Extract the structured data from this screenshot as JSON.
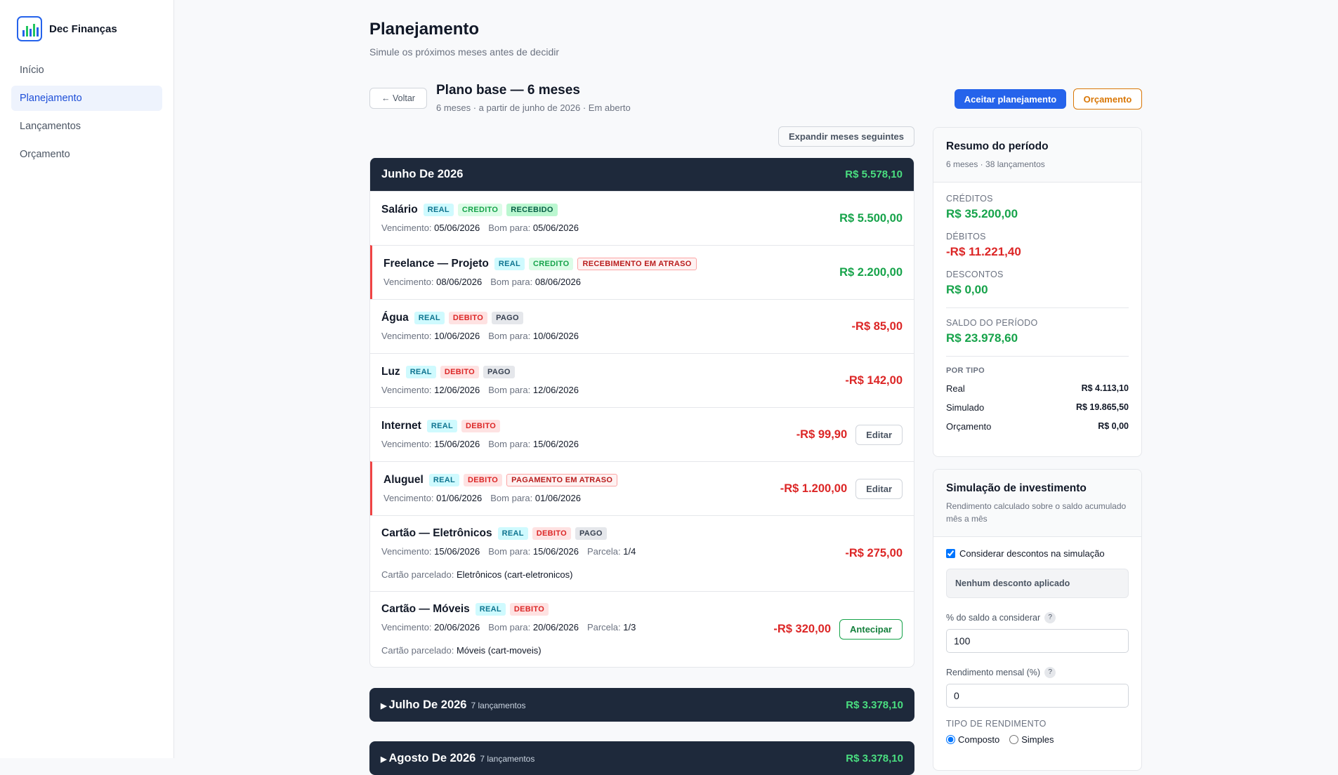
{
  "sidebar": {
    "brand": "Dec Finanças",
    "nav": [
      "Início",
      "Planejamento",
      "Lançamentos",
      "Orçamento"
    ],
    "active": 1
  },
  "header": {
    "title": "Planejamento",
    "subtitle": "Simule os próximos meses antes de decidir"
  },
  "plan": {
    "back": "← Voltar",
    "title": "Plano base — 6 meses",
    "meta": "6 meses · a partir de junho de 2026 · Em aberto",
    "accept": "Aceitar planejamento",
    "budget": "Orçamento",
    "expand": "Expandir meses seguintes"
  },
  "labels": {
    "due": "Vencimento:",
    "good": "Bom para:",
    "parcel": "Parcela:",
    "card": "Cartão parcelado:"
  },
  "months": [
    {
      "title": "Junho De 2026",
      "total": "R$ 5.578,10",
      "entries": [
        {
          "name": "Salário",
          "tags": [
            {
              "text": "REAL",
              "tone": "real"
            },
            {
              "text": "CREDITO",
              "tone": "credit"
            },
            {
              "text": "RECEBIDO",
              "tone": "received"
            }
          ],
          "due": "05/06/2026",
          "good": "05/06/2026",
          "amount": "R$ 5.500,00",
          "color": "#16a34a"
        },
        {
          "name": "Freelance — Projeto",
          "late": true,
          "tags": [
            {
              "text": "REAL",
              "tone": "real"
            },
            {
              "text": "CREDITO",
              "tone": "credit"
            },
            {
              "text": "RECEBIMENTO EM ATRASO",
              "tone": "late"
            }
          ],
          "due": "08/06/2026",
          "good": "08/06/2026",
          "amount": "R$ 2.200,00",
          "color": "#16a34a"
        },
        {
          "name": "Água",
          "tags": [
            {
              "text": "REAL",
              "tone": "real"
            },
            {
              "text": "DEBITO",
              "tone": "debit"
            },
            {
              "text": "PAGO",
              "tone": "paid"
            }
          ],
          "due": "10/06/2026",
          "good": "10/06/2026",
          "amount": "-R$ 85,00",
          "color": "#dc2626"
        },
        {
          "name": "Luz",
          "tags": [
            {
              "text": "REAL",
              "tone": "real"
            },
            {
              "text": "DEBITO",
              "tone": "debit"
            },
            {
              "text": "PAGO",
              "tone": "paid"
            }
          ],
          "due": "12/06/2026",
          "good": "12/06/2026",
          "amount": "-R$ 142,00",
          "color": "#dc2626"
        },
        {
          "name": "Internet",
          "tags": [
            {
              "text": "REAL",
              "tone": "real"
            },
            {
              "text": "DEBITO",
              "tone": "debit"
            }
          ],
          "due": "15/06/2026",
          "good": "15/06/2026",
          "amount": "-R$ 99,90",
          "color": "#dc2626",
          "action": {
            "text": "Editar",
            "tone": "neutral"
          }
        },
        {
          "name": "Aluguel",
          "late": true,
          "tags": [
            {
              "text": "REAL",
              "tone": "real"
            },
            {
              "text": "DEBITO",
              "tone": "debit"
            },
            {
              "text": "PAGAMENTO EM ATRASO",
              "tone": "late"
            }
          ],
          "due": "01/06/2026",
          "good": "01/06/2026",
          "amount": "-R$ 1.200,00",
          "color": "#dc2626",
          "action": {
            "text": "Editar",
            "tone": "neutral"
          }
        },
        {
          "name": "Cartão — Eletrônicos",
          "tags": [
            {
              "text": "REAL",
              "tone": "real"
            },
            {
              "text": "DEBITO",
              "tone": "debit"
            },
            {
              "text": "PAGO",
              "tone": "paid"
            }
          ],
          "due": "15/06/2026",
          "good": "15/06/2026",
          "parcel": "1/4",
          "card": "Eletrônicos (cart-eletronicos)",
          "amount": "-R$ 275,00",
          "color": "#dc2626"
        },
        {
          "name": "Cartão — Móveis",
          "tags": [
            {
              "text": "REAL",
              "tone": "real"
            },
            {
              "text": "DEBITO",
              "tone": "debit"
            }
          ],
          "due": "20/06/2026",
          "good": "20/06/2026",
          "parcel": "1/3",
          "card": "Móveis (cart-moveis)",
          "amount": "-R$ 320,00",
          "color": "#dc2626",
          "action": {
            "text": "Antecipar",
            "tone": "green"
          }
        }
      ]
    },
    {
      "title": "Julho De 2026",
      "count": "7 lançamentos",
      "total": "R$ 3.378,10"
    },
    {
      "title": "Agosto De 2026",
      "count": "7 lançamentos",
      "total": "R$ 3.378,10"
    }
  ],
  "summary": {
    "title": "Resumo do período",
    "sub": "6 meses · 38 lançamentos",
    "stats": [
      {
        "label": "CRÉDITOS",
        "value": "R$ 35.200,00",
        "color": "#16a34a"
      },
      {
        "label": "DÉBITOS",
        "value": "-R$ 11.221,40",
        "color": "#dc2626"
      },
      {
        "label": "DESCONTOS",
        "value": "R$ 0,00",
        "color": "#16a34a"
      }
    ],
    "balance": {
      "label": "SALDO DO PERÍODO",
      "value": "R$ 23.978,60",
      "color": "#16a34a"
    },
    "by_type": {
      "label": "POR TIPO",
      "rows": [
        [
          "Real",
          "R$ 4.113,10"
        ],
        [
          "Simulado",
          "R$ 19.865,50"
        ],
        [
          "Orçamento",
          "R$ 0,00"
        ]
      ]
    }
  },
  "simulation": {
    "title": "Simulação de investimento",
    "desc": "Rendimento calculado sobre o saldo acumulado mês a mês",
    "discounts": "Considerar descontos na simulação",
    "no_discount": "Nenhum desconto aplicado",
    "pct_label": "% do saldo a considerar",
    "pct": "100",
    "rate_label": "Rendimento mensal (%)",
    "rate": "0",
    "help": "?",
    "kind_label": "TIPO DE RENDIMENTO",
    "kinds": [
      "Composto",
      "Simples"
    ]
  }
}
